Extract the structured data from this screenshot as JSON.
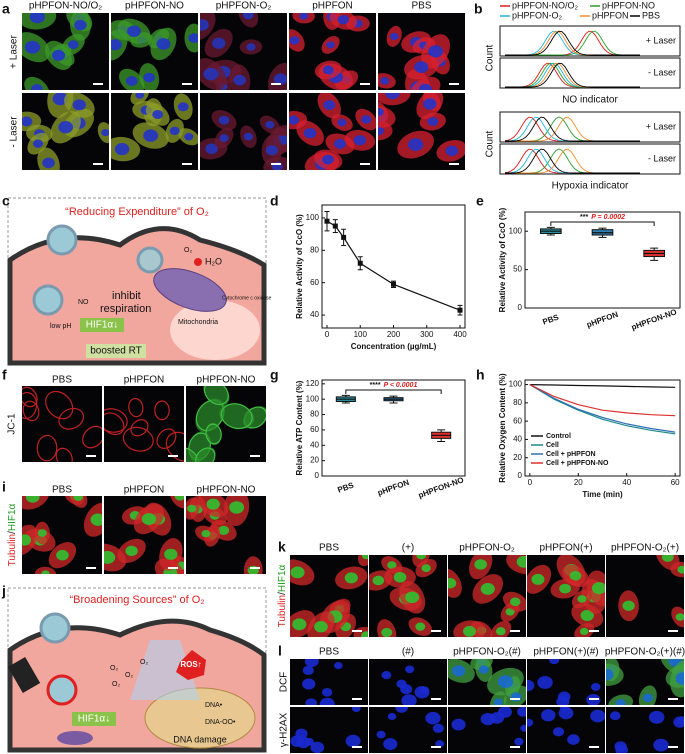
{
  "panels": {
    "a": {
      "label": "a",
      "columns": [
        "pHPFON-NO/O₂",
        "pHPFON-NO",
        "pHPFON-O₂",
        "pHPFON",
        "PBS"
      ],
      "rows": [
        "+ Laser",
        "- Laser"
      ]
    },
    "b": {
      "label": "b",
      "legend": [
        {
          "name": "pHPFON-NO/O₂",
          "color": "#e41a1c"
        },
        {
          "name": "pHPFON-NO",
          "color": "#2ca02c"
        },
        {
          "name": "pHPFON-O₂",
          "color": "#1fb4d8"
        },
        {
          "name": "pHPFON",
          "color": "#f28e2b"
        },
        {
          "name": "PBS",
          "color": "#000000"
        }
      ],
      "groups": [
        {
          "ylabel": "Count",
          "rows": [
            "+ Laser",
            "- Laser"
          ],
          "xlabel": "NO indicator"
        },
        {
          "ylabel": "Count",
          "rows": [
            "+ Laser",
            "- Laser"
          ],
          "xlabel": "Hypoxia indicator"
        }
      ]
    },
    "c": {
      "label": "c",
      "title": "“Reducing Expenditure” of O₂",
      "low_ph": "low pH",
      "no": "NO",
      "inhibit": "inhibit",
      "respiration": "respiration",
      "h2o": "H₂O",
      "o2": "O₂",
      "hif": "HIF1α↓",
      "enzyme": "Cytochrome c oxidase",
      "mito": "Mitochondria",
      "rt": "boosted RT"
    },
    "f": {
      "label": "f",
      "columns": [
        "PBS",
        "pHPFON",
        "pHPFON-NO"
      ],
      "row": "JC-1"
    },
    "i": {
      "label": "i",
      "columns": [
        "PBS",
        "pHPFON",
        "pHPFON-NO"
      ],
      "stain_1": "Tubulin",
      "separator": "/",
      "stain_2": "HIF1α"
    },
    "j": {
      "label": "j",
      "title": "“Broadening Sources” of O₂",
      "o2": "O₂",
      "ros": "ROS↑",
      "dna_radical": "DNA•",
      "dna_peroxyl": "DNA-OO•",
      "damage": "DNA damage",
      "hif": "HIF1α↓"
    },
    "k": {
      "label": "k",
      "columns": [
        "PBS",
        "(+)",
        "pHPFON-O₂",
        "pHPFON(+)",
        "pHPFON-O₂(+)"
      ],
      "stain_1": "Tubulin",
      "separator": "/",
      "stain_2": "HIF1α"
    },
    "l": {
      "label": "l",
      "columns": [
        "PBS",
        "(#)",
        "pHPFON-O₂(#)",
        "pHPFON(+)(#)",
        "pHPFON-O₂(+)(#)"
      ],
      "rows": [
        "DCF",
        "γ-H2AX"
      ]
    }
  },
  "chart_data": [
    {
      "type": "line",
      "label": "d",
      "xlabel": "Concentration (µg/mL)",
      "ylabel": "Relative Activity of CcO (%)",
      "x": [
        0,
        25,
        50,
        100,
        200,
        400
      ],
      "values": [
        98,
        95,
        88,
        72,
        59,
        43
      ],
      "errors": [
        6,
        4,
        5,
        4,
        2,
        3
      ],
      "color": "#111111",
      "xlim": [
        -15,
        415
      ],
      "xticks": [
        0,
        100,
        200,
        300,
        400
      ],
      "ylim": [
        32,
        108
      ],
      "yticks": [
        40,
        60,
        80,
        100
      ]
    },
    {
      "type": "box",
      "label": "e",
      "ylabel": "Relative Activity of CcO (%)",
      "categories": [
        "PBS",
        "pHPFON",
        "pHPFON-NO"
      ],
      "boxes": [
        {
          "min": 95,
          "q1": 97,
          "median": 100,
          "q3": 103,
          "max": 105
        },
        {
          "min": 92,
          "q1": 95,
          "median": 98,
          "q3": 102,
          "max": 104
        },
        {
          "min": 62,
          "q1": 67,
          "median": 71,
          "q3": 75,
          "max": 78
        }
      ],
      "colors": [
        "#2a8c9a",
        "#2f7fb4",
        "#e0302d"
      ],
      "ylim": [
        0,
        125
      ],
      "yticks": [
        0,
        50,
        100
      ],
      "annotation": {
        "stars": "***",
        "text": "P = 0.0002"
      }
    },
    {
      "type": "box",
      "label": "g",
      "ylabel": "Relative ATP Content (%)",
      "categories": [
        "PBS",
        "pHPFON",
        "pHPFON-NO"
      ],
      "boxes": [
        {
          "min": 95,
          "q1": 97,
          "median": 100,
          "q3": 103,
          "max": 105
        },
        {
          "min": 95,
          "q1": 98,
          "median": 100,
          "q3": 102,
          "max": 104
        },
        {
          "min": 45,
          "q1": 49,
          "median": 53,
          "q3": 57,
          "max": 60
        }
      ],
      "colors": [
        "#2a8c9a",
        "#2f7fb4",
        "#e0302d"
      ],
      "ylim": [
        0,
        125
      ],
      "yticks": [
        0,
        20,
        40,
        60,
        80,
        100,
        120
      ],
      "annotation": {
        "stars": "****",
        "text": "P < 0.0001"
      }
    },
    {
      "type": "line",
      "label": "h",
      "xlabel": "Time (min)",
      "ylabel": "Relative Oxygen Content (%)",
      "x": [
        0,
        10,
        20,
        30,
        40,
        50,
        60
      ],
      "series": [
        {
          "name": "Control",
          "color": "#111111",
          "values": [
            100,
            99.5,
            99,
            98.5,
            98,
            97.5,
            97
          ]
        },
        {
          "name": "Cell",
          "color": "#1f8a8a",
          "values": [
            100,
            84,
            72,
            62,
            55,
            50,
            46
          ]
        },
        {
          "name": "Cell + pHPFON",
          "color": "#2f6fb4",
          "values": [
            100,
            85,
            73,
            64,
            57,
            52,
            48
          ]
        },
        {
          "name": "Cell + pHPFON-NO",
          "color": "#e0302d",
          "values": [
            100,
            87,
            78,
            72,
            69,
            67,
            66
          ]
        }
      ],
      "xlim": [
        -2,
        62
      ],
      "xticks": [
        0,
        20,
        40,
        60
      ],
      "ylim": [
        0,
        105
      ],
      "yticks": [
        0,
        20,
        40,
        60,
        80,
        100
      ]
    }
  ]
}
